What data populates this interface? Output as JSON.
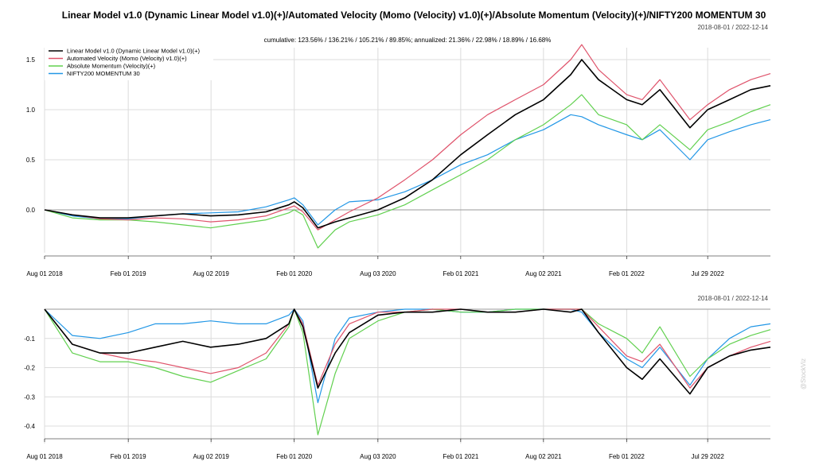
{
  "chart_data": [
    {
      "type": "line",
      "title": "Linear Model v1.0 (Dynamic Linear Model v1.0)(+)/Automated Velocity (Momo (Velocity) v1.0)(+)/Absolute Momentum (Velocity)(+)/NIFTY200 MOMENTUM 30",
      "subtitle": "cumulative: 123.56% / 136.21% / 105.21% / 89.85%; annualized: 21.36% / 22.98% / 18.89% / 16.68%",
      "date_range": "2018-08-01 / 2022-12-14",
      "x": [
        "2018-08-01",
        "2018-10-01",
        "2018-12-01",
        "2019-02-01",
        "2019-04-01",
        "2019-06-01",
        "2019-08-01",
        "2019-10-01",
        "2019-12-01",
        "2020-01-20",
        "2020-02-01",
        "2020-02-20",
        "2020-03-24",
        "2020-05-01",
        "2020-06-01",
        "2020-08-03",
        "2020-10-01",
        "2020-12-01",
        "2021-02-01",
        "2021-04-01",
        "2021-06-01",
        "2021-08-02",
        "2021-10-01",
        "2021-10-25",
        "2021-12-01",
        "2022-02-01",
        "2022-03-07",
        "2022-04-15",
        "2022-06-20",
        "2022-07-29",
        "2022-09-15",
        "2022-11-01",
        "2022-12-14"
      ],
      "xticks": [
        "Aug 01 2018",
        "Feb 01 2019",
        "Aug 02 2019",
        "Feb 01 2020",
        "Aug 03 2020",
        "Feb 01 2021",
        "Aug 02 2021",
        "Feb 01 2022",
        "Jul 29 2022"
      ],
      "ylim": [
        -0.4,
        1.65
      ],
      "yticks": [
        "0.0",
        "0.5",
        "1.0",
        "1.5"
      ],
      "grid": true,
      "legend_position": "top-left",
      "series": [
        {
          "name": "Linear Model v1.0 (Dynamic Linear Model v1.0)(+)",
          "color": "#000000",
          "values": [
            0.0,
            -0.05,
            -0.08,
            -0.08,
            -0.06,
            -0.04,
            -0.06,
            -0.05,
            -0.02,
            0.05,
            0.08,
            0.02,
            -0.18,
            -0.12,
            -0.08,
            0.0,
            0.12,
            0.3,
            0.55,
            0.75,
            0.95,
            1.1,
            1.35,
            1.5,
            1.3,
            1.1,
            1.05,
            1.2,
            0.82,
            1.0,
            1.1,
            1.2,
            1.24
          ]
        },
        {
          "name": "Automated Velocity (Momo (Velocity) v1.0)(+)",
          "color": "#df536b",
          "values": [
            0.0,
            -0.05,
            -0.09,
            -0.1,
            -0.08,
            -0.09,
            -0.12,
            -0.1,
            -0.06,
            0.02,
            0.04,
            -0.02,
            -0.2,
            -0.1,
            -0.02,
            0.12,
            0.3,
            0.5,
            0.75,
            0.95,
            1.1,
            1.25,
            1.5,
            1.65,
            1.4,
            1.15,
            1.1,
            1.3,
            0.9,
            1.05,
            1.2,
            1.3,
            1.36
          ]
        },
        {
          "name": "Absolute Momentum (Velocity)(+)",
          "color": "#61d04f",
          "values": [
            0.0,
            -0.08,
            -0.1,
            -0.1,
            -0.12,
            -0.15,
            -0.18,
            -0.14,
            -0.1,
            -0.03,
            0.0,
            -0.05,
            -0.38,
            -0.2,
            -0.12,
            -0.05,
            0.05,
            0.2,
            0.35,
            0.5,
            0.7,
            0.85,
            1.05,
            1.15,
            0.95,
            0.85,
            0.7,
            0.85,
            0.6,
            0.8,
            0.88,
            0.98,
            1.05
          ]
        },
        {
          "name": "NIFTY200 MOMENTUM 30",
          "color": "#2297e6",
          "values": [
            0.0,
            -0.06,
            -0.09,
            -0.09,
            -0.06,
            -0.04,
            -0.03,
            -0.02,
            0.03,
            0.1,
            0.12,
            0.05,
            -0.15,
            0.0,
            0.08,
            0.1,
            0.18,
            0.3,
            0.45,
            0.55,
            0.7,
            0.8,
            0.95,
            0.93,
            0.85,
            0.75,
            0.7,
            0.8,
            0.5,
            0.7,
            0.78,
            0.85,
            0.9
          ]
        }
      ]
    },
    {
      "type": "line",
      "title": "",
      "date_range": "2018-08-01 / 2022-12-14",
      "x": [
        "2018-08-01",
        "2018-10-01",
        "2018-12-01",
        "2019-02-01",
        "2019-04-01",
        "2019-06-01",
        "2019-08-01",
        "2019-10-01",
        "2019-12-01",
        "2020-01-20",
        "2020-02-01",
        "2020-02-20",
        "2020-03-24",
        "2020-05-01",
        "2020-06-01",
        "2020-08-03",
        "2020-10-01",
        "2020-12-01",
        "2021-02-01",
        "2021-04-01",
        "2021-06-01",
        "2021-08-02",
        "2021-10-01",
        "2021-10-25",
        "2021-12-01",
        "2022-02-01",
        "2022-03-07",
        "2022-04-15",
        "2022-06-20",
        "2022-07-29",
        "2022-09-15",
        "2022-11-01",
        "2022-12-14"
      ],
      "xticks": [
        "Aug 01 2018",
        "Feb 01 2019",
        "Aug 02 2019",
        "Feb 01 2020",
        "Aug 03 2020",
        "Feb 01 2021",
        "Aug 02 2021",
        "Feb 01 2022",
        "Jul 29 2022"
      ],
      "ylim": [
        -0.44,
        0.0
      ],
      "yticks": [
        "-0.1",
        "-0.2",
        "-0.3",
        "-0.4"
      ],
      "grid": true,
      "series": [
        {
          "name": "Linear Model v1.0 (Dynamic Linear Model v1.0)(+)",
          "color": "#000000",
          "values": [
            0.0,
            -0.12,
            -0.15,
            -0.15,
            -0.13,
            -0.11,
            -0.13,
            -0.12,
            -0.1,
            -0.05,
            0.0,
            -0.06,
            -0.27,
            -0.15,
            -0.08,
            -0.02,
            -0.01,
            -0.01,
            0.0,
            -0.01,
            -0.01,
            0.0,
            -0.01,
            0.0,
            -0.08,
            -0.2,
            -0.24,
            -0.17,
            -0.29,
            -0.2,
            -0.16,
            -0.14,
            -0.13
          ]
        },
        {
          "name": "Automated Velocity (Momo (Velocity) v1.0)(+)",
          "color": "#df536b",
          "values": [
            0.0,
            -0.12,
            -0.15,
            -0.17,
            -0.18,
            -0.2,
            -0.22,
            -0.2,
            -0.15,
            -0.05,
            0.0,
            -0.05,
            -0.26,
            -0.12,
            -0.05,
            -0.01,
            -0.01,
            0.0,
            0.0,
            -0.01,
            -0.01,
            0.0,
            0.0,
            0.0,
            -0.06,
            -0.16,
            -0.18,
            -0.12,
            -0.27,
            -0.2,
            -0.16,
            -0.13,
            -0.11
          ]
        },
        {
          "name": "Absolute Momentum (Velocity)(+)",
          "color": "#61d04f",
          "values": [
            0.0,
            -0.15,
            -0.18,
            -0.18,
            -0.2,
            -0.23,
            -0.25,
            -0.21,
            -0.17,
            -0.06,
            0.0,
            -0.08,
            -0.43,
            -0.22,
            -0.1,
            -0.04,
            -0.01,
            0.0,
            -0.01,
            -0.01,
            0.0,
            0.0,
            0.0,
            0.0,
            -0.05,
            -0.1,
            -0.15,
            -0.06,
            -0.23,
            -0.17,
            -0.12,
            -0.09,
            -0.07
          ]
        },
        {
          "name": "NIFTY200 MOMENTUM 30",
          "color": "#2297e6",
          "values": [
            0.0,
            -0.09,
            -0.1,
            -0.08,
            -0.05,
            -0.05,
            -0.04,
            -0.05,
            -0.05,
            -0.02,
            0.0,
            -0.04,
            -0.32,
            -0.1,
            -0.03,
            -0.01,
            0.0,
            0.0,
            -0.01,
            -0.01,
            0.0,
            0.0,
            0.0,
            -0.01,
            -0.08,
            -0.17,
            -0.2,
            -0.13,
            -0.26,
            -0.17,
            -0.1,
            -0.06,
            -0.05
          ]
        }
      ]
    }
  ],
  "watermark": "@StockViz"
}
